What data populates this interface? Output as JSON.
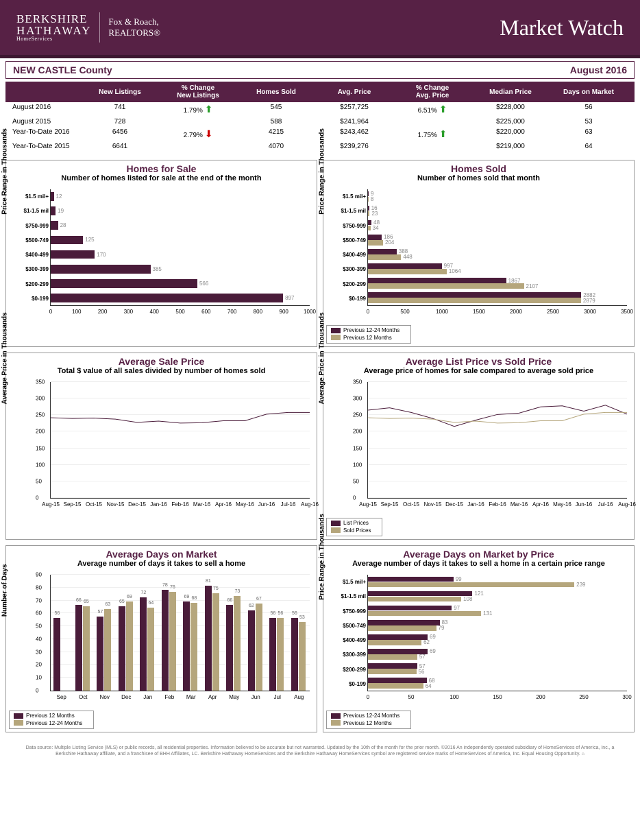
{
  "header": {
    "brand_top": "BERKSHIRE",
    "brand_mid": "HATHAWAY",
    "brand_sub": "HomeServices",
    "brand2": "Fox & Roach,\nREALTORS®",
    "title": "Market Watch"
  },
  "subhead": {
    "county": "NEW CASTLE County",
    "period": "August 2016"
  },
  "table": {
    "headers": [
      "",
      "New Listings",
      "% Change\nNew Listings",
      "Homes Sold",
      "Avg. Price",
      "% Change\nAvg. Price",
      "Median Price",
      "Days on Market"
    ],
    "rows": [
      {
        "label": "August 2016",
        "cells": [
          "741",
          "1.79%↑",
          "545",
          "$257,725",
          "6.51%↑",
          "$228,000",
          "56"
        ],
        "arrows": [
          null,
          "up",
          null,
          null,
          "up",
          null,
          null
        ]
      },
      {
        "label": "August 2015",
        "cells": [
          "728",
          "",
          "588",
          "$241,964",
          "",
          "$225,000",
          "53"
        ],
        "arrows": [
          null,
          null,
          null,
          null,
          null,
          null,
          null
        ]
      },
      {
        "label": "Year-To-Date 2016",
        "cells": [
          "6456",
          "2.79%↓",
          "4215",
          "$243,462",
          "1.75%↑",
          "$220,000",
          "63"
        ],
        "arrows": [
          null,
          "down",
          null,
          null,
          "up",
          null,
          null
        ]
      },
      {
        "label": "Year-To-Date 2015",
        "cells": [
          "6641",
          "",
          "4070",
          "$239,276",
          "",
          "$219,000",
          "64"
        ],
        "arrows": [
          null,
          null,
          null,
          null,
          null,
          null,
          null
        ]
      }
    ]
  },
  "colors": {
    "primary": "#4a1c3a",
    "secondary": "#b5a67c",
    "header": "#572145",
    "grid": "#eeeeee"
  },
  "charts": {
    "homes_for_sale": {
      "title": "Homes for Sale",
      "sub": "Number of homes listed for sale at the end of the month",
      "type": "hbar",
      "ylabel": "Price Range in Thousands",
      "categories": [
        "$1.5 mil+",
        "$1-1.5 mil",
        "$750-999",
        "$500-749",
        "$400-499",
        "$300-399",
        "$200-299",
        "$0-199"
      ],
      "values": [
        12,
        19,
        28,
        125,
        170,
        385,
        566,
        897
      ],
      "xmax": 1000,
      "xticks": [
        0,
        100,
        200,
        300,
        400,
        500,
        600,
        700,
        800,
        900,
        1000
      ],
      "bar_color": "#4a1c3a"
    },
    "homes_sold": {
      "title": "Homes Sold",
      "sub": "Number of homes sold that month",
      "type": "hbar-grouped",
      "ylabel": "Price Range in Thousands",
      "categories": [
        "$1.5 mil+",
        "$1-1.5 mil",
        "$750-999",
        "$500-749",
        "$400-499",
        "$300-399",
        "$200-299",
        "$0-199"
      ],
      "series1": {
        "label": "Previous 12-24 Months",
        "color": "#4a1c3a",
        "values": [
          9,
          16,
          48,
          186,
          388,
          997,
          1867,
          2882
        ]
      },
      "series2": {
        "label": "Previous 12 Months",
        "color": "#b5a67c",
        "values": [
          8,
          23,
          34,
          204,
          448,
          1064,
          2107,
          2879
        ]
      },
      "xmax": 3500,
      "xticks": [
        0,
        500,
        1000,
        1500,
        2000,
        2500,
        3000,
        3500
      ]
    },
    "avg_sale_price": {
      "title": "Average Sale Price",
      "sub": "Total $ value of all sales divided by number of homes sold",
      "type": "line",
      "ylabel": "Average Price in Thousands",
      "categories": [
        "Aug-15",
        "Sep-15",
        "Oct-15",
        "Nov-15",
        "Dec-15",
        "Jan-16",
        "Feb-16",
        "Mar-16",
        "Apr-16",
        "May-16",
        "Jun-16",
        "Jul-16",
        "Aug-16"
      ],
      "series": [
        {
          "color": "#4a1c3a",
          "values": [
            242,
            240,
            241,
            238,
            228,
            232,
            226,
            227,
            233,
            233,
            253,
            258,
            258
          ]
        }
      ],
      "ymax": 350,
      "yticks": [
        0,
        50,
        100,
        150,
        200,
        250,
        300,
        350
      ]
    },
    "list_vs_sold": {
      "title": "Average List Price vs Sold Price",
      "sub": "Average price of homes for sale compared to average sold price",
      "type": "line",
      "ylabel": "Average Price in Thousands",
      "categories": [
        "Aug-15",
        "Sep-15",
        "Oct-15",
        "Nov-15",
        "Dec-15",
        "Jan-16",
        "Feb-16",
        "Mar-16",
        "Apr-16",
        "May-16",
        "Jun-16",
        "Jul-16",
        "Aug-16"
      ],
      "series": [
        {
          "label": "List Prices",
          "color": "#4a1c3a",
          "values": [
            265,
            272,
            258,
            240,
            216,
            235,
            252,
            256,
            275,
            278,
            262,
            280,
            253
          ]
        },
        {
          "label": "Sold Prices",
          "color": "#b5a67c",
          "values": [
            242,
            240,
            241,
            238,
            228,
            232,
            226,
            227,
            233,
            233,
            253,
            258,
            258
          ]
        }
      ],
      "ymax": 350,
      "yticks": [
        0,
        50,
        100,
        150,
        200,
        250,
        300,
        350
      ]
    },
    "days_on_market": {
      "title": "Average Days on Market",
      "sub": "Average number of days it takes to sell a home",
      "type": "vbar-grouped",
      "ylabel": "Number of Days",
      "categories": [
        "Sep",
        "Oct",
        "Nov",
        "Dec",
        "Jan",
        "Feb",
        "Mar",
        "Apr",
        "May",
        "Jun",
        "Jul",
        "Aug"
      ],
      "series1": {
        "label": "Previous 12 Months",
        "color": "#4a1c3a",
        "values": [
          56,
          66,
          57,
          65,
          72,
          78,
          69,
          81,
          66,
          62,
          56,
          56
        ]
      },
      "series2": {
        "label": "Previous 12-24 Months",
        "color": "#b5a67c",
        "values": [
          0,
          65,
          63,
          69,
          64,
          76,
          68,
          75,
          73,
          67,
          56,
          53
        ]
      },
      "labels1": [
        56,
        66,
        57,
        65,
        72,
        78,
        69,
        81,
        66,
        62,
        56,
        56
      ],
      "labels2": [
        0,
        65,
        63,
        69,
        64,
        76,
        68,
        75,
        73,
        67,
        56,
        53
      ],
      "extra_labels": {
        "0": 56,
        "1": 67,
        "4": 71,
        "7": 66,
        "8": 61,
        "9": 61,
        "10": 55
      },
      "ymax": 90,
      "yticks": [
        0,
        10,
        20,
        30,
        40,
        50,
        60,
        70,
        80,
        90
      ]
    },
    "days_by_price": {
      "title": "Average Days on Market by Price",
      "sub": "Average number of days it takes to sell a home in a certain price range",
      "type": "hbar-grouped",
      "ylabel": "Price Range in Thousands",
      "categories": [
        "$1.5 mil+",
        "$1-1.5 mil",
        "$750-999",
        "$500-749",
        "$400-499",
        "$300-399",
        "$200-299",
        "$0-199"
      ],
      "series1": {
        "label": "Previous 12-24 Months",
        "color": "#4a1c3a",
        "values": [
          99,
          121,
          97,
          83,
          69,
          69,
          57,
          68
        ]
      },
      "series2": {
        "label": "Previous 12 Months",
        "color": "#b5a67c",
        "values": [
          239,
          108,
          131,
          79,
          62,
          57,
          56,
          64
        ]
      },
      "xmax": 300,
      "xticks": [
        0,
        50,
        100,
        150,
        200,
        250,
        300
      ]
    }
  },
  "footer": "Data source: Multiple Listing Service (MLS) or public records, all residential properties. Information believed to be accurate but not warranted. Updated by the 10th of the month for the prior month. ©2016 An independently operated subsidiary of HomeServices of America, Inc., a Berkshire Hathaway affiliate, and a franchisee of BHH Affiliates, LC. Berkshire Hathaway HomeServices and the Berkshire Hathaway HomeServices symbol are registered service marks of HomeServices of America, Inc. Equal Housing Opportunity. ⌂"
}
